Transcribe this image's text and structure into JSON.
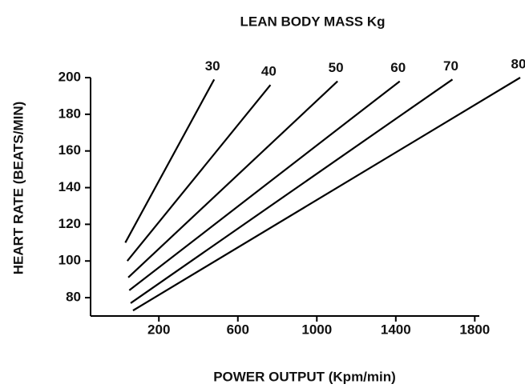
{
  "chart_data": {
    "type": "line",
    "title": "LEAN BODY MASS Kg",
    "x_label": "POWER OUTPUT (Kpm/min)",
    "y_label": "HEART RATE (BEATS/MIN)",
    "xlim": [
      -146,
      1823
    ],
    "xticks": [
      200,
      600,
      1000,
      1400,
      1800
    ],
    "ylim": [
      70,
      200
    ],
    "yticks": [
      80,
      100,
      120,
      140,
      160,
      180,
      200
    ],
    "grid": false,
    "series": [
      {
        "name": "30",
        "color": "#000000",
        "x": [
          30,
          480
        ],
        "values": [
          110,
          199
        ]
      },
      {
        "name": "40",
        "color": "#000000",
        "x": [
          40,
          765
        ],
        "values": [
          100,
          196
        ]
      },
      {
        "name": "50",
        "color": "#000000",
        "x": [
          45,
          1105
        ],
        "values": [
          91,
          198
        ]
      },
      {
        "name": "60",
        "color": "#000000",
        "x": [
          50,
          1420
        ],
        "values": [
          84,
          198
        ]
      },
      {
        "name": "70",
        "color": "#000000",
        "x": [
          57,
          1687
        ],
        "values": [
          77,
          199
        ]
      },
      {
        "name": "80",
        "color": "#000000",
        "x": [
          69,
          2030
        ],
        "values": [
          73,
          200
        ]
      }
    ]
  }
}
